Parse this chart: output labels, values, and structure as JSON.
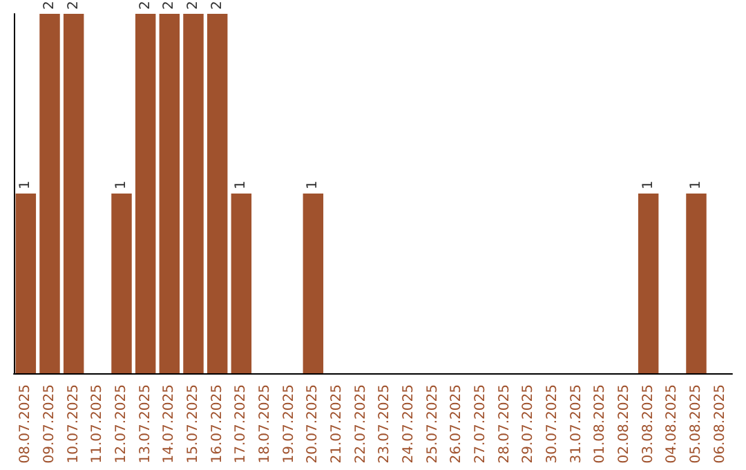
{
  "chart_data": {
    "type": "bar",
    "categories": [
      "08.07.2025",
      "09.07.2025",
      "10.07.2025",
      "11.07.2025",
      "12.07.2025",
      "13.07.2025",
      "14.07.2025",
      "15.07.2025",
      "16.07.2025",
      "17.07.2025",
      "18.07.2025",
      "19.07.2025",
      "20.07.2025",
      "21.07.2025",
      "22.07.2025",
      "23.07.2025",
      "24.07.2025",
      "25.07.2025",
      "26.07.2025",
      "27.07.2025",
      "28.07.2025",
      "29.07.2025",
      "30.07.2025",
      "31.07.2025",
      "01.08.2025",
      "02.08.2025",
      "03.08.2025",
      "04.08.2025",
      "05.08.2025",
      "06.08.2025"
    ],
    "values": [
      1,
      2,
      2,
      0,
      1,
      2,
      2,
      2,
      2,
      1,
      0,
      0,
      1,
      0,
      0,
      0,
      0,
      0,
      0,
      0,
      0,
      0,
      0,
      0,
      0,
      0,
      1,
      0,
      1,
      0
    ],
    "value_labels": [
      "1",
      "2",
      "2",
      null,
      "1",
      "2",
      "2",
      "2",
      "2",
      "1",
      null,
      null,
      "1",
      null,
      null,
      null,
      null,
      null,
      null,
      null,
      null,
      null,
      null,
      null,
      null,
      null,
      "1",
      null,
      "1",
      null
    ],
    "color": "#a0522d",
    "tick_labels": "x"
  }
}
